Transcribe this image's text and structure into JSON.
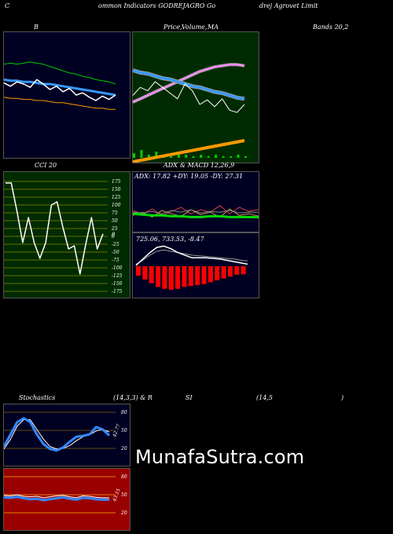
{
  "header": {
    "title_parts": [
      "C",
      "ommon  Indicators GODREJAGRO Go",
      "drej Agrovet Limit"
    ]
  },
  "panels": {
    "bb": {
      "title": "B",
      "colors": {
        "bg": "#000022",
        "upper": "#00cc00",
        "lower": "#ff9900",
        "mid": "#3399ff",
        "price": "#ffffff"
      }
    },
    "pma": {
      "title_a": "Price,",
      "title_b": "Volume,",
      "title_c": "MA",
      "colors": {
        "bg": "#002b00",
        "ma_fast": "#3399ff",
        "ma_slow": "#ff88ff",
        "volume_up": "#00cc00",
        "volume_ma": "#ff9900"
      }
    },
    "bands_label": "Bands 20,2",
    "cci": {
      "title": "CCI 20",
      "ticks": [
        "175",
        "150",
        "125",
        "100",
        "75",
        "50",
        "25",
        "0",
        "-25",
        "-50",
        "-75",
        "-100",
        "-125",
        "-150",
        "-175"
      ],
      "last_label": "8",
      "colors": {
        "bg": "#002b00",
        "grid": "#888800"
      }
    },
    "adx": {
      "title_a": "ADX",
      "title_b": "& MACD 12,26,9",
      "readout": "ADX: 17.82  +DY: 19.05 -DY: 27.31",
      "colors": {
        "bg": "#000022"
      }
    },
    "macd": {
      "readout": "725.06,    733.53,   -8.47",
      "colors": {
        "bg": "#000022",
        "hist": "#ff0000"
      }
    },
    "stoch": {
      "title_a": "Stochastics",
      "title_b": "(14,3,3) & R",
      "title_c": "SI",
      "title_d": "(14,5",
      "title_e": ")",
      "ticks": [
        "80",
        "50",
        "20"
      ],
      "last_label": "42.77",
      "colors": {
        "bg": "#000022",
        "grid": "#886600"
      }
    },
    "rsi": {
      "ticks": [
        "80",
        "50",
        "20"
      ],
      "last_label": "43.15",
      "colors": {
        "bg": "#990000",
        "grid": "#ffaa00"
      }
    }
  },
  "watermark": "MunafaSutra.com",
  "chart_data": [
    {
      "type": "line",
      "name_ref": "bollinger",
      "ylim": [
        0,
        100
      ],
      "series": [
        {
          "values": [
            78,
            79,
            78,
            79,
            80,
            79,
            78,
            76,
            74,
            72,
            70,
            69,
            67,
            66,
            64,
            63,
            62,
            60
          ]
        },
        {
          "values": [
            64,
            63,
            63,
            62,
            62,
            61,
            60,
            60,
            59,
            58,
            57,
            56,
            55,
            54,
            53,
            52,
            51,
            50
          ]
        },
        {
          "values": [
            48,
            47,
            47,
            46,
            46,
            45,
            45,
            44,
            43,
            43,
            42,
            41,
            40,
            39,
            38,
            38,
            37,
            37
          ]
        },
        {
          "values": [
            61,
            58,
            62,
            60,
            57,
            64,
            60,
            55,
            58,
            53,
            56,
            50,
            52,
            48,
            45,
            49,
            46,
            50
          ]
        }
      ]
    },
    {
      "type": "line",
      "name_ref": "price_volume_ma",
      "ylim": [
        0,
        100
      ],
      "series": [
        {
          "values": [
            70,
            68,
            67,
            65,
            63,
            62,
            60,
            58,
            56,
            55,
            53,
            51,
            50,
            48,
            46,
            45
          ]
        },
        {
          "values": [
            42,
            45,
            48,
            51,
            54,
            57,
            60,
            63,
            66,
            69,
            71,
            73,
            74,
            75,
            75,
            74
          ]
        },
        {
          "values": [
            48,
            55,
            52,
            60,
            55,
            50,
            45,
            58,
            52,
            40,
            44,
            38,
            45,
            35,
            33,
            40
          ]
        },
        {
          "values": [
            3,
            5,
            2,
            4,
            2,
            1,
            3,
            2,
            1,
            2,
            1,
            2,
            1,
            1,
            2,
            1
          ]
        }
      ]
    },
    {
      "type": "line",
      "name_ref": "cci",
      "ylim": [
        -175,
        175
      ],
      "series": [
        {
          "values": [
            170,
            170,
            80,
            -20,
            60,
            -20,
            -70,
            -20,
            100,
            110,
            30,
            -40,
            -30,
            -120,
            -25,
            60,
            -40,
            8
          ]
        }
      ]
    },
    {
      "type": "line",
      "name_ref": "adx",
      "ylim": [
        0,
        60
      ],
      "series": [
        {
          "values": [
            22,
            21,
            20,
            20,
            19,
            19,
            18,
            18,
            19,
            19,
            18,
            18,
            18,
            17.82
          ]
        },
        {
          "values": [
            20,
            24,
            18,
            26,
            22,
            19,
            27,
            21,
            24,
            18,
            28,
            20,
            22,
            19.05
          ]
        },
        {
          "values": [
            26,
            22,
            28,
            20,
            25,
            30,
            22,
            27,
            24,
            32,
            22,
            30,
            25,
            27.31
          ]
        }
      ]
    },
    {
      "type": "bar",
      "name_ref": "macd_histogram",
      "ylim": [
        -30,
        5
      ],
      "values": [
        -10,
        -14,
        -18,
        -22,
        -24,
        -25,
        -24,
        -22,
        -21,
        -20,
        -19,
        -17,
        -15,
        -13,
        -11,
        -9,
        -8.47
      ]
    },
    {
      "type": "line",
      "name_ref": "stochastics",
      "ylim": [
        0,
        100
      ],
      "series": [
        {
          "values": [
            20,
            45,
            70,
            78,
            70,
            45,
            25,
            15,
            12,
            18,
            30,
            40,
            42,
            45,
            60,
            55,
            42.77
          ]
        },
        {
          "values": [
            15,
            35,
            62,
            75,
            75,
            55,
            35,
            20,
            15,
            16,
            22,
            32,
            40,
            44,
            52,
            55,
            50
          ]
        }
      ]
    },
    {
      "type": "line",
      "name_ref": "rsi",
      "ylim": [
        0,
        100
      ],
      "series": [
        {
          "values": [
            48,
            47,
            49,
            46,
            44,
            45,
            42,
            44,
            46,
            48,
            45,
            43,
            47,
            46,
            44,
            43,
            43.15
          ]
        }
      ]
    }
  ]
}
